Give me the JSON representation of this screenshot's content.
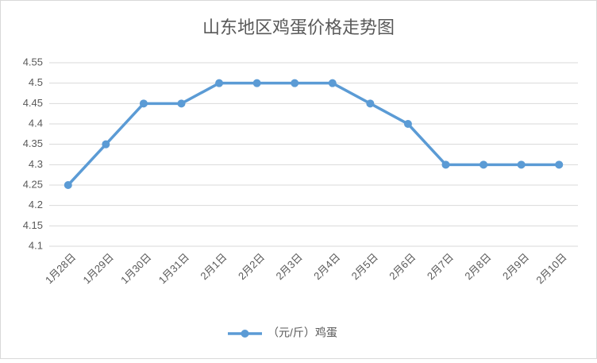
{
  "chart_data": {
    "type": "line",
    "title": "山东地区鸡蛋价格走势图",
    "categories": [
      "1月28日",
      "1月29日",
      "1月30日",
      "1月31日",
      "2月1日",
      "2月2日",
      "2月3日",
      "2月4日",
      "2月5日",
      "2月6日",
      "2月7日",
      "2月8日",
      "2月9日",
      "2月10日"
    ],
    "series": [
      {
        "name": "（元/斤）鸡蛋",
        "color": "#5b9bd5",
        "values": [
          4.25,
          4.35,
          4.45,
          4.45,
          4.5,
          4.5,
          4.5,
          4.5,
          4.45,
          4.4,
          4.3,
          4.3,
          4.3,
          4.3
        ]
      }
    ],
    "ylim": [
      4.1,
      4.55
    ],
    "yticks": [
      4.1,
      4.15,
      4.2,
      4.25,
      4.3,
      4.35,
      4.4,
      4.45,
      4.5,
      4.55
    ],
    "grid": true,
    "legend": "bottom"
  }
}
